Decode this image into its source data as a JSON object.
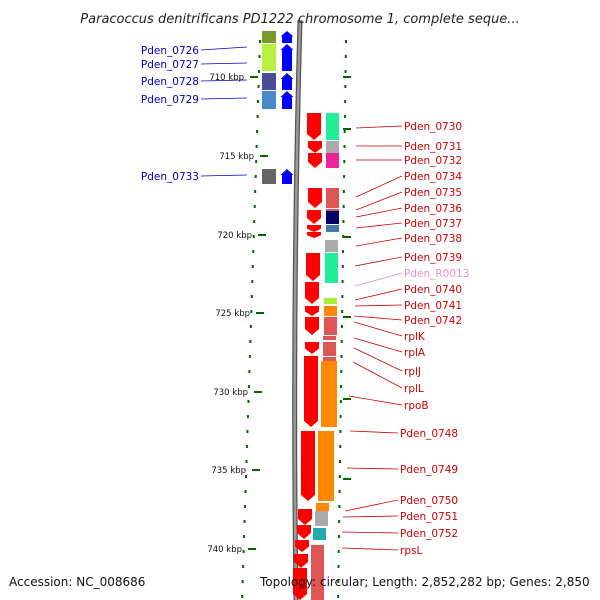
{
  "title": "Paracoccus denitrificans PD1222 chromosome 1, complete seque...",
  "accession": "Accession: NC_008686",
  "topology": "Topology: circular; Length: 2,852,282 bp; Genes: 2,850",
  "colors": {
    "forward_arrow": "#0000ff",
    "reverse_arrow": "#ff0000",
    "backbone": "#777777",
    "tick": "#006600",
    "left_label": "#0000bb",
    "right_label": "#cc0000",
    "rna_label": "#f08cc8"
  },
  "ticks": [
    {
      "label": "710 kbp"
    },
    {
      "label": "715 kbp"
    },
    {
      "label": "720 kbp"
    },
    {
      "label": "725 kbp"
    },
    {
      "label": "730 kbp"
    },
    {
      "label": "735 kbp"
    },
    {
      "label": "740 kbp"
    }
  ],
  "left_genes": [
    {
      "name": "Pden_0726",
      "color": "#7a9a2a"
    },
    {
      "name": "Pden_0727",
      "color": "#b8f040"
    },
    {
      "name": "Pden_0728",
      "color": "#4a4a9a"
    },
    {
      "name": "Pden_0729",
      "color": "#4a88cc"
    },
    {
      "name": "Pden_0733",
      "color": "#666666"
    }
  ],
  "right_genes": [
    {
      "name": "Pden_0730",
      "color": "#22ee99"
    },
    {
      "name": "Pden_0731",
      "color": "#aaaaaa"
    },
    {
      "name": "Pden_0732",
      "color": "#ee2299"
    },
    {
      "name": "Pden_0734",
      "color": "#dd5555"
    },
    {
      "name": "Pden_0735",
      "color": "#dd5555"
    },
    {
      "name": "Pden_0736",
      "color": "#000066"
    },
    {
      "name": "Pden_0737",
      "color": "#4477aa"
    },
    {
      "name": "Pden_0738",
      "color": "#aaaaaa"
    },
    {
      "name": "Pden_0739",
      "color": "#22ee99"
    },
    {
      "name": "Pden_R0013",
      "color": "#ffffff",
      "rna": true
    },
    {
      "name": "Pden_0740",
      "color": "#aaee33"
    },
    {
      "name": "Pden_0741",
      "color": "#ff8800"
    },
    {
      "name": "Pden_0742",
      "color": "#dd5555"
    },
    {
      "name": "rplK",
      "color": "#dd5555"
    },
    {
      "name": "rplA",
      "color": "#dd5555"
    },
    {
      "name": "rplJ",
      "color": "#dd5555"
    },
    {
      "name": "rplL",
      "color": "#dd5555"
    },
    {
      "name": "rpoB",
      "color": "#ff8800"
    },
    {
      "name": "Pden_0748",
      "color": "#ff8800"
    },
    {
      "name": "Pden_0749",
      "color": "#ff8800"
    },
    {
      "name": "Pden_0750",
      "color": "#aaaaaa"
    },
    {
      "name": "Pden_0751",
      "color": "#22aaaa"
    },
    {
      "name": "Pden_0752",
      "color": "#dd5555"
    },
    {
      "name": "rpsL",
      "color": "#dd5555"
    }
  ]
}
